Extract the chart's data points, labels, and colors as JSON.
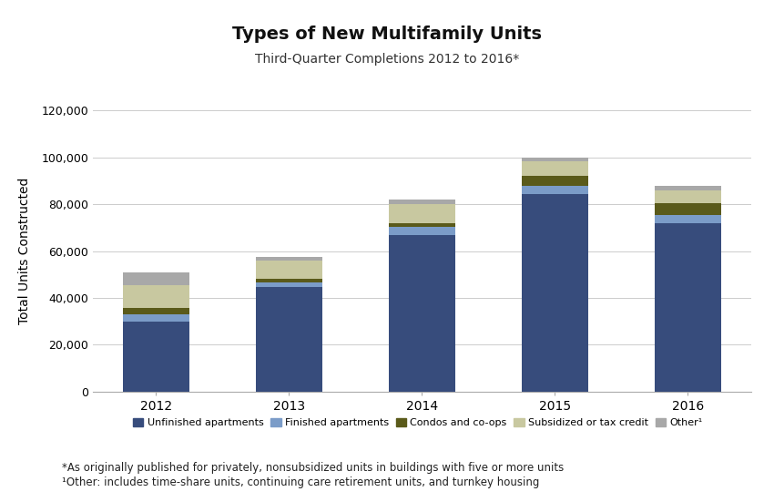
{
  "title": "Types of New Multifamily Units",
  "subtitle": "Third-Quarter Completions 2012 to 2016*",
  "ylabel": "Total Units Constructed",
  "years": [
    "2012",
    "2013",
    "2014",
    "2015",
    "2016"
  ],
  "categories": [
    "Unfinished apartments",
    "Finished apartments",
    "Condos and co-ops",
    "Subsidized or tax credit",
    "Other¹"
  ],
  "colors": [
    "#374c7c",
    "#7b9cc8",
    "#5a5a1a",
    "#c8c8a0",
    "#a8a8a8"
  ],
  "data": {
    "Unfinished apartments": [
      30000,
      44500,
      67000,
      84500,
      72000
    ],
    "Finished apartments": [
      3000,
      2000,
      3500,
      3500,
      3500
    ],
    "Condos and co-ops": [
      2500,
      1500,
      1500,
      4000,
      5000
    ],
    "Subsidized or tax credit": [
      10000,
      8000,
      8000,
      6500,
      5500
    ],
    "Other¹": [
      5500,
      1500,
      2000,
      1500,
      2000
    ]
  },
  "ylim": [
    0,
    120000
  ],
  "yticks": [
    0,
    20000,
    40000,
    60000,
    80000,
    100000,
    120000
  ],
  "ytick_labels": [
    "0",
    "20,000",
    "40,000",
    "60,000",
    "80,000",
    "100,000",
    "120,000"
  ],
  "footnote1": "*As originally published for privately, nonsubsidized units in buildings with five or more units",
  "footnote2": "¹Other: includes time-share units, continuing care retirement units, and turnkey housing",
  "background_color": "#ffffff",
  "grid_color": "#cccccc",
  "bar_width": 0.5,
  "title_fontsize": 14,
  "subtitle_fontsize": 10,
  "ylabel_fontsize": 10,
  "legend_fontsize": 8,
  "tick_fontsize": 9
}
